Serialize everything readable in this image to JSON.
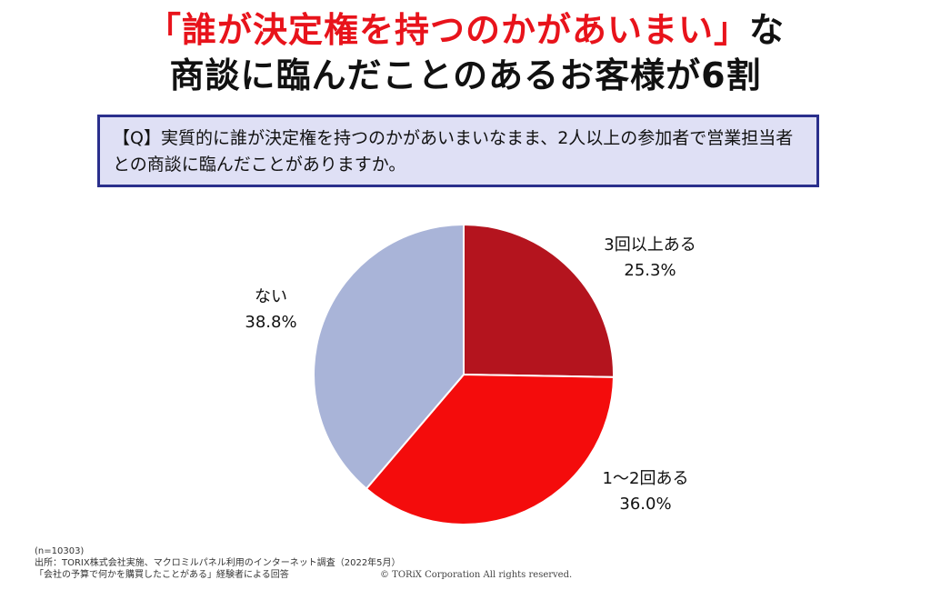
{
  "headline": {
    "line1_red": "「誰が決定権を持つのかがあいまい」",
    "line1_black": "な",
    "line2": "商談に臨んだことのあるお客様が6割"
  },
  "question": "【Q】実質的に誰が決定権を持つのかがあいまいなまま、2人以上の参加者で営業担当者との商談に臨んだことがありますか。",
  "chart_data": {
    "type": "pie",
    "categories": [
      "3回以上ある",
      "1～2回ある",
      "ない"
    ],
    "values": [
      25.3,
      36.0,
      38.8
    ],
    "labels": [
      "25.3%",
      "36.0%",
      "38.8%"
    ],
    "colors": [
      "#b4141e",
      "#f40c0c",
      "#a9b4d8"
    ],
    "start_angle": "12 o'clock",
    "direction": "clockwise"
  },
  "footer": {
    "n": "(n=10303)",
    "source": "出所：TORIX株式会社実施、マクロミルパネル利用のインターネット調査（2022年5月）",
    "note": "「会社の予算で何かを購買したことがある」経験者による回答",
    "copyright": "© TORiX Corporation All rights reserved."
  }
}
